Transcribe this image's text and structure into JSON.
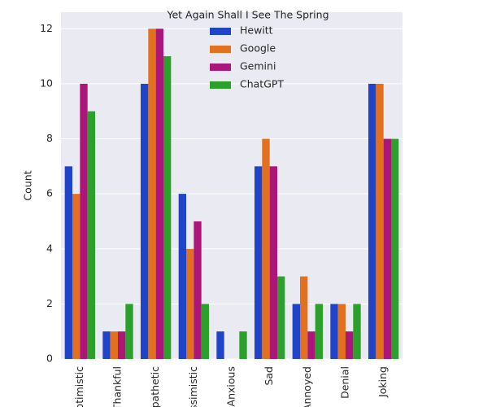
{
  "chart_data": {
    "type": "bar",
    "title": "Yet Again Shall I See The Spring",
    "y_label": "Count",
    "categories": [
      "Optimistic",
      "Thankful",
      "Empathetic",
      "Pessimistic",
      "Anxious",
      "Sad",
      "Annoyed",
      "Denial",
      "Joking"
    ],
    "series": [
      {
        "name": "Hewitt",
        "color": "#1f44c8",
        "values": [
          7,
          1,
          10,
          6,
          1,
          7,
          2,
          2,
          10
        ]
      },
      {
        "name": "Google",
        "color": "#e2701f",
        "values": [
          6,
          1,
          12,
          4,
          0,
          8,
          3,
          2,
          10
        ]
      },
      {
        "name": "Gemini",
        "color": "#ac1679",
        "values": [
          10,
          1,
          12,
          5,
          0,
          7,
          1,
          1,
          8
        ]
      },
      {
        "name": "ChatGPT",
        "color": "#2ba02b",
        "values": [
          9,
          2,
          11,
          2,
          1,
          3,
          2,
          2,
          8
        ]
      }
    ],
    "ylim": [
      0,
      12.6
    ],
    "yticks": [
      0,
      2,
      4,
      6,
      8,
      10,
      12
    ],
    "grid": true,
    "legend": "upper center"
  }
}
